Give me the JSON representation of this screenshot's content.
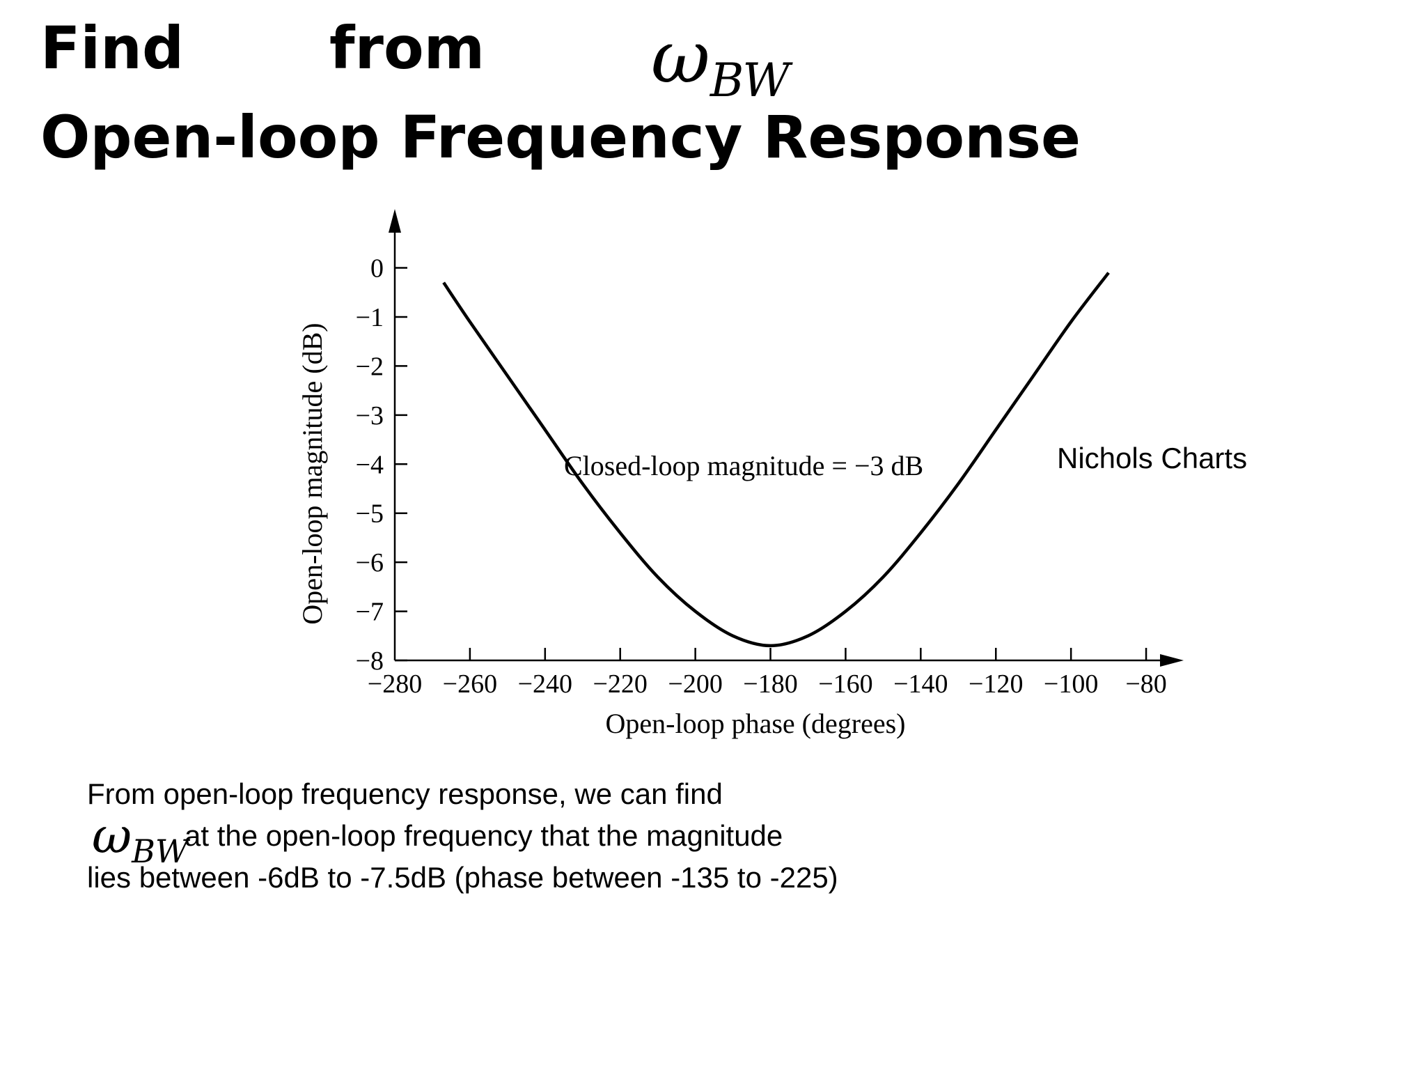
{
  "slide": {
    "title_word1": "Find",
    "title_word2": "from",
    "title_symbol": "ω",
    "title_symbol_sub": "BW",
    "title_line2": "Open-loop Frequency Response",
    "side_label": "Nichols Charts",
    "body_line1": "From open-loop frequency response, we can find",
    "body_symbol": "ω",
    "body_symbol_sub": "BW",
    "body_line2": "at the open-loop frequency that the magnitude",
    "body_line3": "lies between -6dB to -7.5dB (phase between -135 to -225)"
  },
  "chart_data": {
    "type": "line",
    "xlabel": "Open-loop phase (degrees)",
    "ylabel": "Open-loop magnitude (dB)",
    "xlim": [
      -280,
      -70
    ],
    "ylim": [
      -8,
      1.2
    ],
    "xticks": [
      -280,
      -260,
      -240,
      -220,
      -200,
      -180,
      -160,
      -140,
      -120,
      -100,
      -80
    ],
    "xtick_labels": [
      "−280",
      "−260",
      "−240",
      "−220",
      "−200",
      "−180",
      "−160",
      "−140",
      "−120",
      "−100",
      "−80"
    ],
    "yticks": [
      0,
      -1,
      -2,
      -3,
      -4,
      -5,
      -6,
      -7,
      -8
    ],
    "ytick_labels": [
      "0",
      "−1",
      "−2",
      "−3",
      "−4",
      "−5",
      "−6",
      "−7",
      "−8"
    ],
    "grid": false,
    "annotation": "Closed-loop magnitude = −3 dB",
    "series": [
      {
        "x": [
          -267,
          -260,
          -250,
          -240,
          -230,
          -220,
          -210,
          -200,
          -190,
          -180,
          -170,
          -160,
          -150,
          -140,
          -130,
          -120,
          -110,
          -100,
          -90
        ],
        "y": [
          -0.3,
          -1.1,
          -2.2,
          -3.3,
          -4.4,
          -5.4,
          -6.3,
          -7.0,
          -7.5,
          -7.7,
          -7.5,
          -7.0,
          -6.3,
          -5.4,
          -4.4,
          -3.3,
          -2.2,
          -1.1,
          -0.1
        ]
      }
    ]
  }
}
